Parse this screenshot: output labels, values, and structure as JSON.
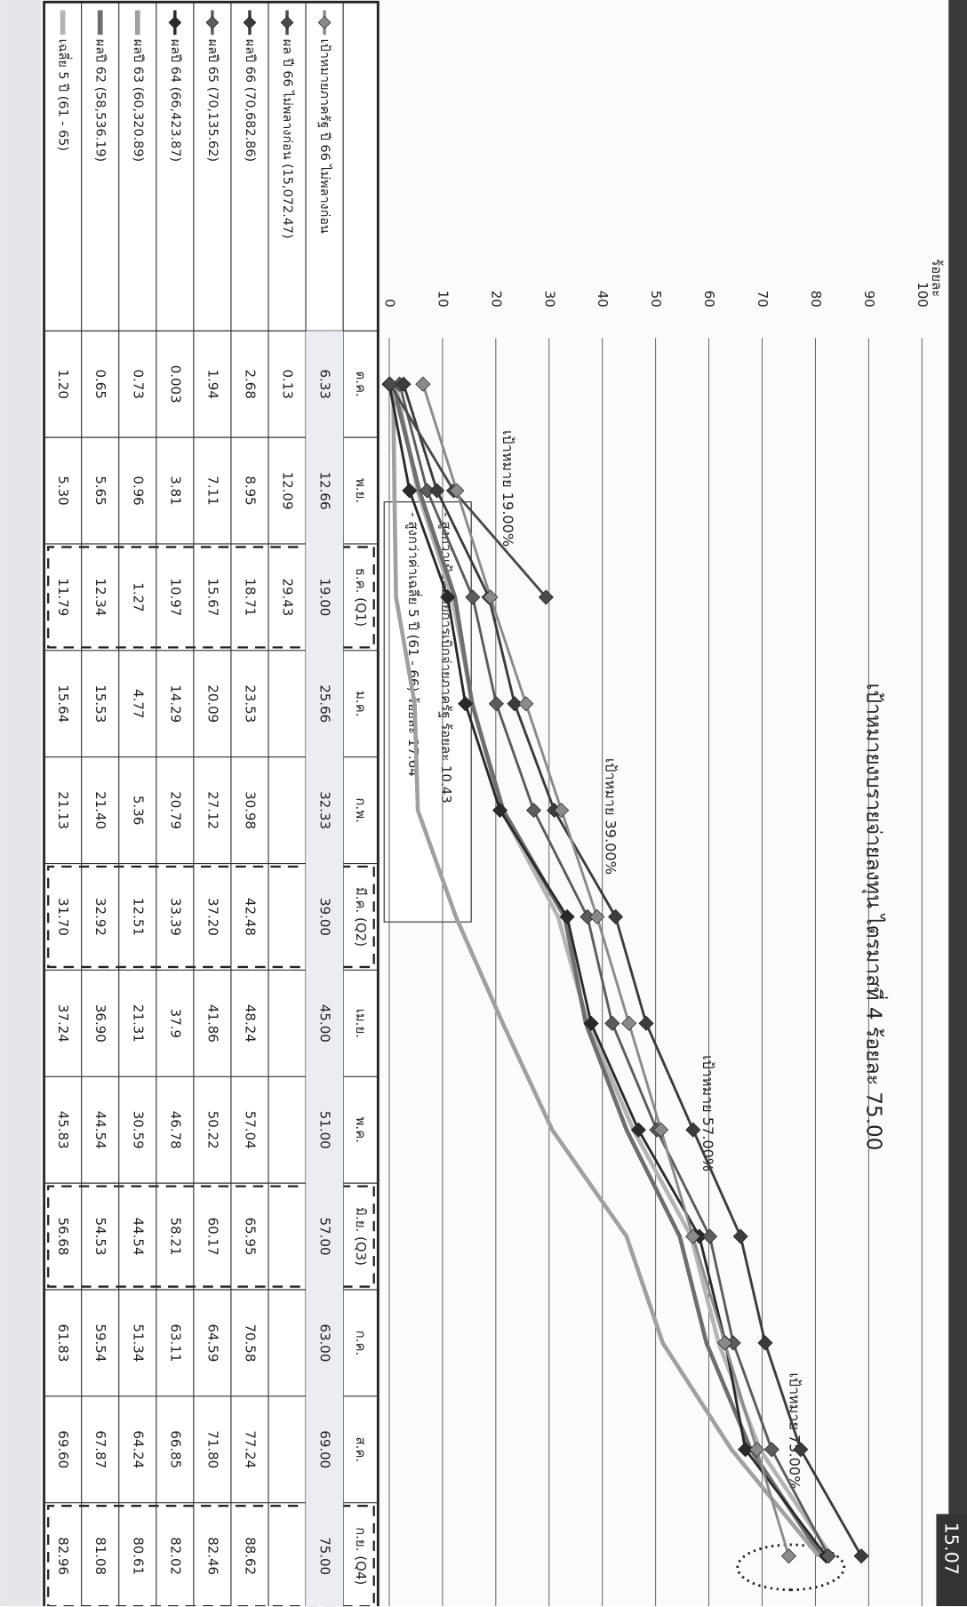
{
  "chart_data": {
    "type": "line",
    "title": "เป้าหมายงบรายจ่ายลงทุน ไตรมาสที่ 4 ร้อยละ 75.00",
    "y_label": "ร้อยละ",
    "categories": [
      "ต.ค.",
      "พ.ย.",
      "ธ.ค. (Q1)",
      "ม.ค.",
      "ก.พ.",
      "มี.ค. (Q2)",
      "เม.ย.",
      "พ.ค.",
      "มิ.ย. (Q3)",
      "ก.ค.",
      "ส.ค.",
      "ก.ย. (Q4)"
    ],
    "ylim": [
      0,
      100
    ],
    "yticks": [
      0,
      10,
      20,
      30,
      40,
      50,
      60,
      70,
      80,
      90,
      100
    ],
    "grid": true,
    "series": [
      {
        "name": "เป้าหมายภาครัฐ ปี 66 ไม่พลางก่อน",
        "color": "#8a8a8a",
        "marker": "diamond",
        "values": [
          6.33,
          12.66,
          19.0,
          25.66,
          32.33,
          39.0,
          45.0,
          51.0,
          57.0,
          63.0,
          69.0,
          75.0
        ],
        "value_labels": [
          "6.33",
          "12.66",
          "19.00",
          "25.66",
          "32.33",
          "39.00",
          "45.00",
          "51.00",
          "57.00",
          "63.00",
          "69.00",
          "75.00"
        ]
      },
      {
        "name": "ผล ปี 66 ไม่พลางก่อน (15,072.47)",
        "color": "#4a4a4a",
        "marker": "diamond",
        "values": [
          0.13,
          12.09,
          29.43,
          null,
          null,
          null,
          null,
          null,
          null,
          null,
          null,
          null
        ],
        "value_labels": [
          "0.13",
          "12.09",
          "29.43",
          null,
          null,
          null,
          null,
          null,
          null,
          null,
          null,
          null
        ]
      },
      {
        "name": "ผลปี 66 (70,682.86)",
        "color": "#3c3c3c",
        "marker": "diamond",
        "values": [
          2.68,
          8.95,
          18.71,
          23.53,
          30.98,
          42.48,
          48.24,
          57.04,
          65.95,
          70.58,
          77.24,
          88.62
        ],
        "value_labels": [
          "2.68",
          "8.95",
          "18.71",
          "23.53",
          "30.98",
          "42.48",
          "48.24",
          "57.04",
          "65.95",
          "70.58",
          "77.24",
          "88.62"
        ]
      },
      {
        "name": "ผลปี 65 (70,135.62)",
        "color": "#5c5c5c",
        "marker": "diamond",
        "values": [
          1.94,
          7.11,
          15.67,
          20.09,
          27.12,
          37.2,
          41.86,
          50.22,
          60.17,
          64.59,
          71.8,
          82.46
        ],
        "value_labels": [
          "1.94",
          "7.11",
          "15.67",
          "20.09",
          "27.12",
          "37.20",
          "41.86",
          "50.22",
          "60.17",
          "64.59",
          "71.80",
          "82.46"
        ]
      },
      {
        "name": "ผลปี 64 (66,423.87)",
        "color": "#2a2a2a",
        "marker": "diamond",
        "values": [
          0.003,
          3.81,
          10.97,
          14.29,
          20.79,
          33.39,
          37.9,
          46.78,
          58.21,
          63.11,
          66.85,
          82.02
        ],
        "value_labels": [
          "0.003",
          "3.81",
          "10.97",
          "14.29",
          "20.79",
          "33.39",
          "37.9",
          "46.78",
          "58.21",
          "63.11",
          "66.85",
          "82.02"
        ]
      },
      {
        "name": "ผลปี 63 (60,320.89)",
        "color": "#a0a0a0",
        "marker": "none",
        "values": [
          0.73,
          0.96,
          1.27,
          4.77,
          5.36,
          12.51,
          21.31,
          30.59,
          44.54,
          51.34,
          64.24,
          80.61
        ],
        "value_labels": [
          "0.73",
          "0.96",
          "1.27",
          "4.77",
          "5.36",
          "12.51",
          "21.31",
          "30.59",
          "44.54",
          "51.34",
          "64.24",
          "80.61"
        ]
      },
      {
        "name": "ผลปี 62 (58,536.19)",
        "color": "#6e6e6e",
        "marker": "none",
        "values": [
          0.65,
          5.65,
          12.34,
          15.53,
          21.4,
          32.92,
          36.9,
          44.54,
          54.53,
          59.54,
          67.87,
          81.08
        ],
        "value_labels": [
          "0.65",
          "5.65",
          "12.34",
          "15.53",
          "21.40",
          "32.92",
          "36.90",
          "44.54",
          "54.53",
          "59.54",
          "67.87",
          "81.08"
        ]
      },
      {
        "name": "เฉลี่ย 5 ปี (61 - 65)",
        "color": "#b4b4b4",
        "marker": "none",
        "values": [
          1.2,
          5.3,
          11.79,
          15.64,
          21.13,
          31.7,
          37.24,
          45.83,
          56.68,
          61.83,
          69.6,
          82.96
        ],
        "value_labels": [
          "1.20",
          "5.30",
          "11.79",
          "15.64",
          "21.13",
          "31.70",
          "37.24",
          "45.83",
          "56.68",
          "61.83",
          "69.60",
          "82.96"
        ]
      }
    ],
    "annotations": [
      "เป้าหมาย 19.00%",
      "เป้าหมาย 39.00%",
      "เป้าหมาย 57.00%",
      "เป้าหมาย 75.00%"
    ],
    "text_box": [
      "- สูงกว่าเป้าหมายการเบิกจ่ายภาครัฐ ร้อยละ 10.43",
      "- สูงกว่าค่าเฉลี่ย 5 ปี (61 - 66) ร้อยละ 17.64"
    ],
    "callout": "15.07"
  }
}
